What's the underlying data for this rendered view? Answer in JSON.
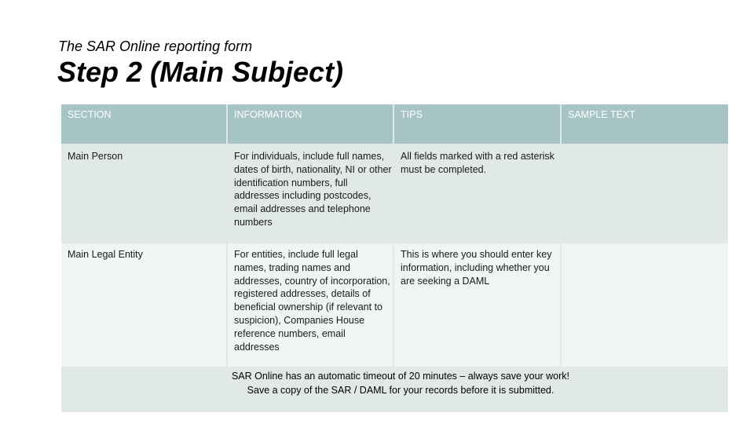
{
  "subtitle": "The SAR Online reporting form",
  "title": "Step 2 (Main Subject)",
  "table": {
    "headers": [
      "SECTION",
      "INFORMATION",
      "TIPS",
      "SAMPLE TEXT"
    ],
    "rows": [
      {
        "section": "Main Person",
        "information": "For individuals, include full names, dates of birth, nationality, NI or other identification numbers, full addresses including postcodes, email addresses and telephone numbers",
        "tips": "All fields marked with a red asterisk must be completed.",
        "sample_text": ""
      },
      {
        "section": "Main Legal Entity",
        "information": "For entities, include full legal names, trading names and addresses, country of incorporation, registered addresses, details of beneficial ownership (if relevant to suspicion), Companies House reference numbers, email addresses",
        "tips": "This is where you should enter key information, including whether you are seeking a DAML",
        "sample_text": ""
      }
    ]
  },
  "notice": {
    "line1": "SAR Online has an automatic timeout of 20 minutes – always save your work!",
    "line2": "Save a copy of the SAR / DAML for your records before it is submitted."
  },
  "colors": {
    "header_bg": "#a7c4c5",
    "row_bg": "#e1e8e8",
    "row_alt_bg": "#f0f4f4"
  }
}
